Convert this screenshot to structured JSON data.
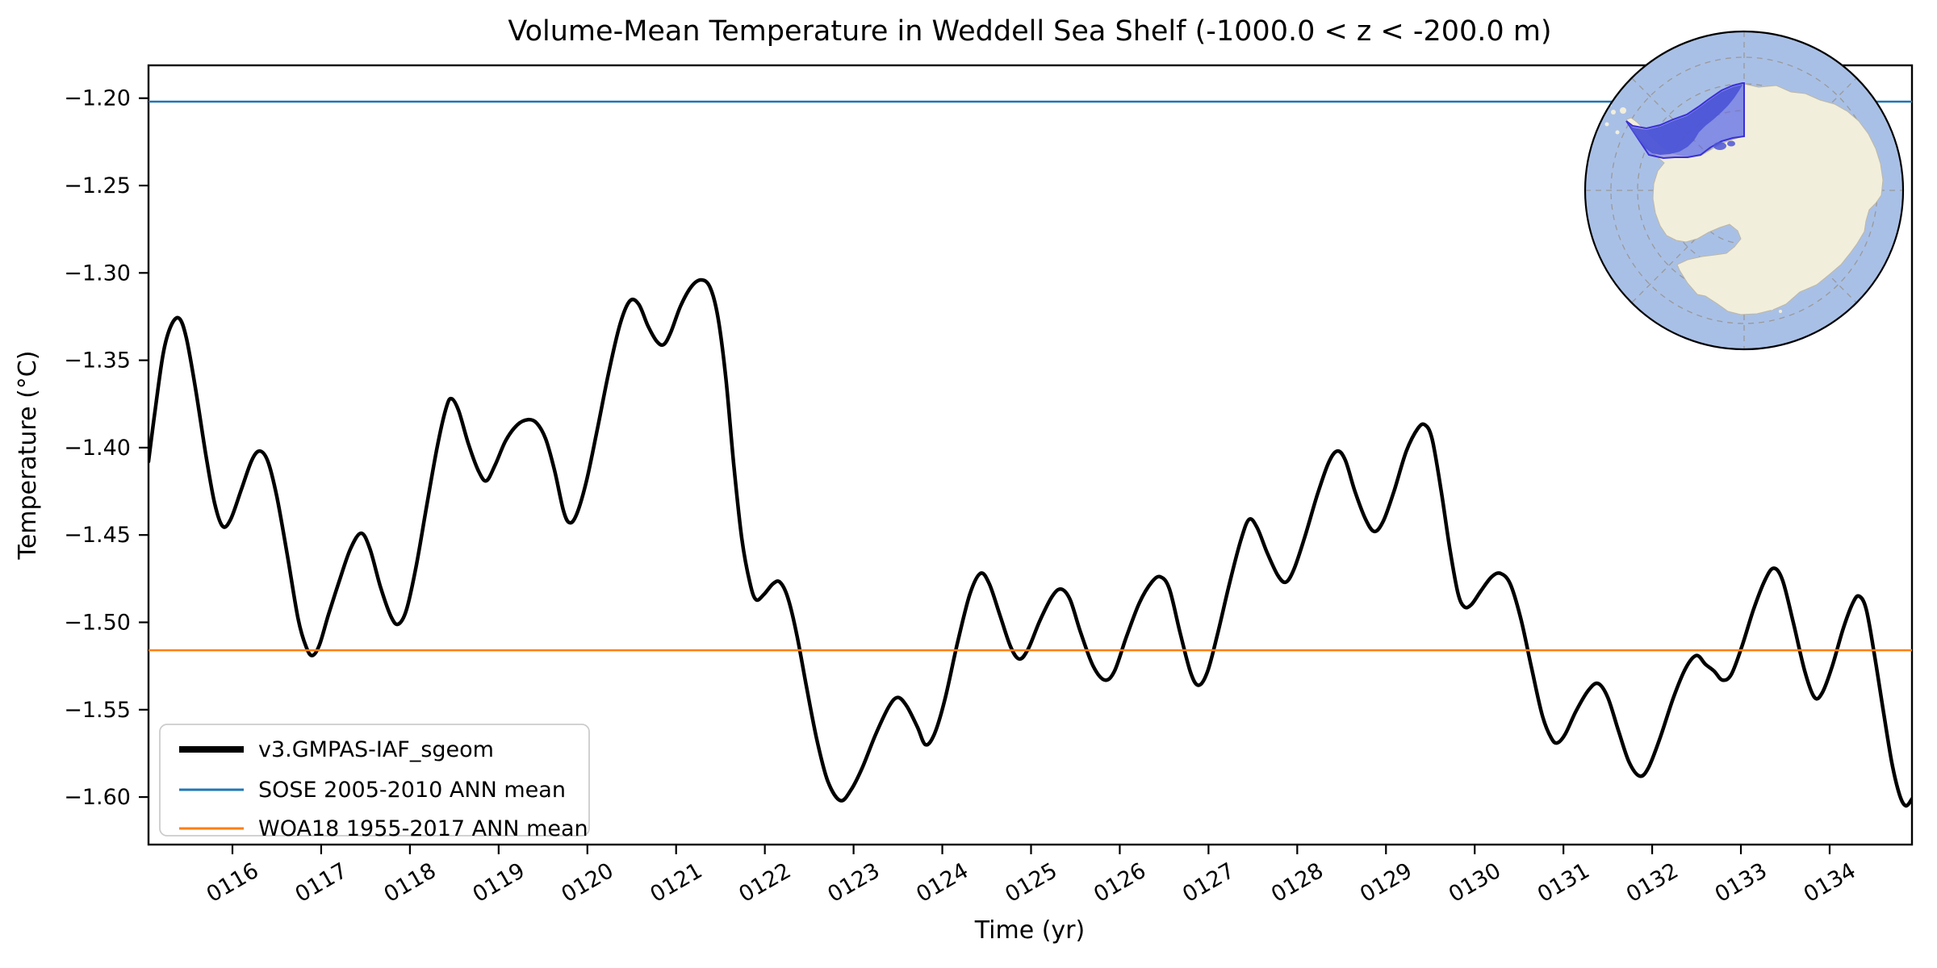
{
  "title": "Volume-Mean Temperature in Weddell Sea Shelf (-1000.0 < z < -200.0 m)",
  "axes": {
    "xlabel": "Time (yr)",
    "ylabel": "Temperature (°C)",
    "xlim": [
      115.054,
      134.928
    ],
    "ylim": [
      -1.6272,
      -1.1812
    ],
    "x_tick_values": [
      116,
      117,
      118,
      119,
      120,
      121,
      122,
      123,
      124,
      125,
      126,
      127,
      128,
      129,
      130,
      131,
      132,
      133,
      134
    ],
    "x_tick_labels": [
      "0116",
      "0117",
      "0118",
      "0119",
      "0120",
      "0121",
      "0122",
      "0123",
      "0124",
      "0125",
      "0126",
      "0127",
      "0128",
      "0129",
      "0130",
      "0131",
      "0132",
      "0133",
      "0134"
    ],
    "y_tick_values": [
      -1.2,
      -1.25,
      -1.3,
      -1.35,
      -1.4,
      -1.45,
      -1.5,
      -1.55,
      -1.6
    ],
    "y_tick_labels": [
      "−1.20",
      "−1.25",
      "−1.30",
      "−1.35",
      "−1.40",
      "−1.45",
      "−1.50",
      "−1.55",
      "−1.60"
    ]
  },
  "legend": {
    "position": "lower left",
    "items": [
      {
        "label": "v3.GMPAS-IAF_sgeom",
        "color": "#000000",
        "linewidth": 8
      },
      {
        "label": "SOSE 2005-2010 ANN mean",
        "color": "#1f77b4",
        "linewidth": 3
      },
      {
        "label": "WOA18 1955-2017 ANN mean",
        "color": "#ff7f0e",
        "linewidth": 3
      }
    ]
  },
  "chart_data": {
    "type": "line",
    "title": "Volume-Mean Temperature in Weddell Sea Shelf (-1000.0 < z < -200.0 m)",
    "xlabel": "Time (yr)",
    "ylabel": "Temperature (°C)",
    "xlim": [
      115.054,
      134.928
    ],
    "ylim": [
      -1.6272,
      -1.1812
    ],
    "grid": false,
    "legend_position": "lower left",
    "series": [
      {
        "name": "v3.GMPAS-IAF_sgeom",
        "type": "line",
        "color": "#000000",
        "linewidth": 4.5,
        "points": [
          [
            115.054,
            -1.408
          ],
          [
            115.13,
            -1.378
          ],
          [
            115.22,
            -1.346
          ],
          [
            115.31,
            -1.33
          ],
          [
            115.4,
            -1.326
          ],
          [
            115.48,
            -1.337
          ],
          [
            115.58,
            -1.365
          ],
          [
            115.7,
            -1.404
          ],
          [
            115.8,
            -1.432
          ],
          [
            115.89,
            -1.445
          ],
          [
            115.98,
            -1.441
          ],
          [
            116.1,
            -1.424
          ],
          [
            116.22,
            -1.407
          ],
          [
            116.31,
            -1.402
          ],
          [
            116.4,
            -1.408
          ],
          [
            116.5,
            -1.428
          ],
          [
            116.62,
            -1.462
          ],
          [
            116.74,
            -1.498
          ],
          [
            116.83,
            -1.514
          ],
          [
            116.9,
            -1.519
          ],
          [
            116.98,
            -1.513
          ],
          [
            117.08,
            -1.496
          ],
          [
            117.2,
            -1.477
          ],
          [
            117.33,
            -1.458
          ],
          [
            117.45,
            -1.449
          ],
          [
            117.55,
            -1.458
          ],
          [
            117.67,
            -1.48
          ],
          [
            117.79,
            -1.497
          ],
          [
            117.87,
            -1.501
          ],
          [
            117.96,
            -1.493
          ],
          [
            118.07,
            -1.468
          ],
          [
            118.19,
            -1.433
          ],
          [
            118.31,
            -1.399
          ],
          [
            118.41,
            -1.377
          ],
          [
            118.47,
            -1.372
          ],
          [
            118.55,
            -1.379
          ],
          [
            118.66,
            -1.398
          ],
          [
            118.77,
            -1.413
          ],
          [
            118.86,
            -1.419
          ],
          [
            118.96,
            -1.41
          ],
          [
            119.08,
            -1.396
          ],
          [
            119.21,
            -1.387
          ],
          [
            119.33,
            -1.384
          ],
          [
            119.43,
            -1.386
          ],
          [
            119.53,
            -1.395
          ],
          [
            119.63,
            -1.413
          ],
          [
            119.73,
            -1.436
          ],
          [
            119.8,
            -1.443
          ],
          [
            119.88,
            -1.438
          ],
          [
            119.99,
            -1.419
          ],
          [
            120.11,
            -1.39
          ],
          [
            120.24,
            -1.357
          ],
          [
            120.37,
            -1.329
          ],
          [
            120.48,
            -1.316
          ],
          [
            120.58,
            -1.318
          ],
          [
            120.68,
            -1.33
          ],
          [
            120.78,
            -1.339
          ],
          [
            120.86,
            -1.341
          ],
          [
            120.94,
            -1.334
          ],
          [
            121.05,
            -1.319
          ],
          [
            121.17,
            -1.308
          ],
          [
            121.28,
            -1.304
          ],
          [
            121.38,
            -1.308
          ],
          [
            121.47,
            -1.325
          ],
          [
            121.56,
            -1.36
          ],
          [
            121.65,
            -1.41
          ],
          [
            121.74,
            -1.452
          ],
          [
            121.83,
            -1.477
          ],
          [
            121.9,
            -1.487
          ],
          [
            121.99,
            -1.484
          ],
          [
            122.09,
            -1.478
          ],
          [
            122.17,
            -1.477
          ],
          [
            122.26,
            -1.486
          ],
          [
            122.36,
            -1.507
          ],
          [
            122.47,
            -1.537
          ],
          [
            122.59,
            -1.568
          ],
          [
            122.71,
            -1.591
          ],
          [
            122.85,
            -1.602
          ],
          [
            122.97,
            -1.596
          ],
          [
            123.1,
            -1.583
          ],
          [
            123.25,
            -1.564
          ],
          [
            123.4,
            -1.548
          ],
          [
            123.5,
            -1.543
          ],
          [
            123.6,
            -1.548
          ],
          [
            123.72,
            -1.56
          ],
          [
            123.81,
            -1.57
          ],
          [
            123.91,
            -1.564
          ],
          [
            124.03,
            -1.544
          ],
          [
            124.17,
            -1.512
          ],
          [
            124.31,
            -1.484
          ],
          [
            124.43,
            -1.472
          ],
          [
            124.53,
            -1.478
          ],
          [
            124.65,
            -1.496
          ],
          [
            124.77,
            -1.514
          ],
          [
            124.87,
            -1.521
          ],
          [
            124.97,
            -1.515
          ],
          [
            125.1,
            -1.499
          ],
          [
            125.24,
            -1.485
          ],
          [
            125.34,
            -1.481
          ],
          [
            125.44,
            -1.487
          ],
          [
            125.56,
            -1.506
          ],
          [
            125.7,
            -1.525
          ],
          [
            125.83,
            -1.533
          ],
          [
            125.94,
            -1.528
          ],
          [
            126.07,
            -1.509
          ],
          [
            126.22,
            -1.489
          ],
          [
            126.36,
            -1.477
          ],
          [
            126.46,
            -1.474
          ],
          [
            126.56,
            -1.481
          ],
          [
            126.68,
            -1.506
          ],
          [
            126.8,
            -1.529
          ],
          [
            126.89,
            -1.536
          ],
          [
            126.99,
            -1.528
          ],
          [
            127.11,
            -1.505
          ],
          [
            127.24,
            -1.477
          ],
          [
            127.37,
            -1.452
          ],
          [
            127.46,
            -1.441
          ],
          [
            127.55,
            -1.446
          ],
          [
            127.66,
            -1.46
          ],
          [
            127.78,
            -1.473
          ],
          [
            127.87,
            -1.477
          ],
          [
            127.96,
            -1.47
          ],
          [
            128.08,
            -1.452
          ],
          [
            128.22,
            -1.428
          ],
          [
            128.35,
            -1.409
          ],
          [
            128.45,
            -1.402
          ],
          [
            128.54,
            -1.407
          ],
          [
            128.65,
            -1.425
          ],
          [
            128.77,
            -1.441
          ],
          [
            128.87,
            -1.448
          ],
          [
            128.97,
            -1.442
          ],
          [
            129.09,
            -1.425
          ],
          [
            129.23,
            -1.402
          ],
          [
            129.36,
            -1.389
          ],
          [
            129.44,
            -1.387
          ],
          [
            129.52,
            -1.395
          ],
          [
            129.62,
            -1.424
          ],
          [
            129.72,
            -1.458
          ],
          [
            129.81,
            -1.483
          ],
          [
            129.88,
            -1.491
          ],
          [
            129.96,
            -1.49
          ],
          [
            130.07,
            -1.482
          ],
          [
            130.19,
            -1.474
          ],
          [
            130.29,
            -1.472
          ],
          [
            130.4,
            -1.478
          ],
          [
            130.52,
            -1.498
          ],
          [
            130.64,
            -1.526
          ],
          [
            130.76,
            -1.553
          ],
          [
            130.86,
            -1.566
          ],
          [
            130.93,
            -1.569
          ],
          [
            131.02,
            -1.564
          ],
          [
            131.14,
            -1.551
          ],
          [
            131.28,
            -1.539
          ],
          [
            131.39,
            -1.535
          ],
          [
            131.5,
            -1.543
          ],
          [
            131.62,
            -1.562
          ],
          [
            131.74,
            -1.58
          ],
          [
            131.86,
            -1.588
          ],
          [
            131.96,
            -1.583
          ],
          [
            132.09,
            -1.566
          ],
          [
            132.24,
            -1.543
          ],
          [
            132.38,
            -1.526
          ],
          [
            132.5,
            -1.519
          ],
          [
            132.6,
            -1.524
          ],
          [
            132.7,
            -1.528
          ],
          [
            132.79,
            -1.533
          ],
          [
            132.89,
            -1.53
          ],
          [
            133.01,
            -1.514
          ],
          [
            133.14,
            -1.493
          ],
          [
            133.27,
            -1.476
          ],
          [
            133.37,
            -1.469
          ],
          [
            133.47,
            -1.476
          ],
          [
            133.59,
            -1.5
          ],
          [
            133.72,
            -1.528
          ],
          [
            133.83,
            -1.543
          ],
          [
            133.92,
            -1.54
          ],
          [
            134.03,
            -1.525
          ],
          [
            134.15,
            -1.504
          ],
          [
            134.26,
            -1.489
          ],
          [
            134.33,
            -1.485
          ],
          [
            134.41,
            -1.492
          ],
          [
            134.5,
            -1.517
          ],
          [
            134.6,
            -1.549
          ],
          [
            134.7,
            -1.58
          ],
          [
            134.79,
            -1.599
          ],
          [
            134.86,
            -1.605
          ],
          [
            134.928,
            -1.601
          ]
        ]
      },
      {
        "name": "SOSE 2005-2010 ANN mean",
        "type": "hline",
        "value": -1.202,
        "color": "#1f77b4",
        "linewidth": 2.5
      },
      {
        "name": "WOA18 1955-2017 ANN mean",
        "type": "hline",
        "value": -1.516,
        "color": "#ff7f0e",
        "linewidth": 2.5
      }
    ]
  },
  "inset_map": {
    "description": "South polar stereographic map of Antarctica with Weddell Sea shelf region highlighted",
    "ocean_color": "#a9c0e6",
    "land_color": "#f1eedc",
    "coast_color": "#bdb7a4",
    "region_fill": "rgba(100,100,225,0.55)",
    "region_water_fill": "#4c55d6",
    "region_edge_color": "#3a30d8",
    "graticule_color": "#999999",
    "outline_color": "#000000"
  }
}
